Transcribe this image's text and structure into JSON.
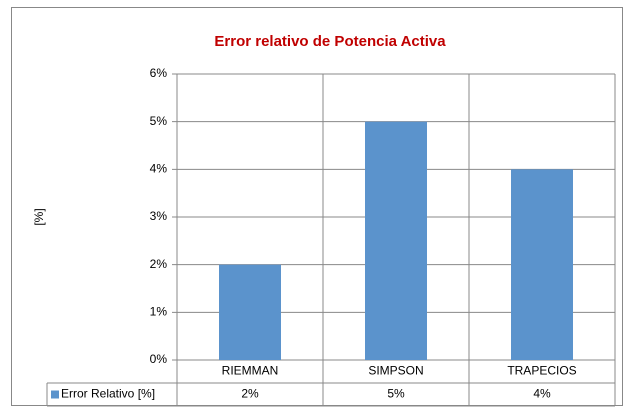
{
  "chart_data": {
    "type": "bar",
    "title": "Error relativo de Potencia Activa",
    "y_label": "[%]",
    "categories": [
      "RIEMMAN",
      "SIMPSON",
      "TRAPECIOS"
    ],
    "series": [
      {
        "name": "Error Relativo [%]",
        "color": "#5b93cc",
        "values": [
          2,
          5,
          4
        ],
        "value_labels": [
          "2%",
          "5%",
          "4%"
        ]
      }
    ],
    "ylim": [
      0,
      6
    ],
    "yticks": [
      {
        "value": 0,
        "label": "0%"
      },
      {
        "value": 1,
        "label": "1%"
      },
      {
        "value": 2,
        "label": "2%"
      },
      {
        "value": 3,
        "label": "3%"
      },
      {
        "value": 4,
        "label": "4%"
      },
      {
        "value": 5,
        "label": "5%"
      },
      {
        "value": 6,
        "label": "6%"
      }
    ],
    "grid": true,
    "data_table": true
  }
}
